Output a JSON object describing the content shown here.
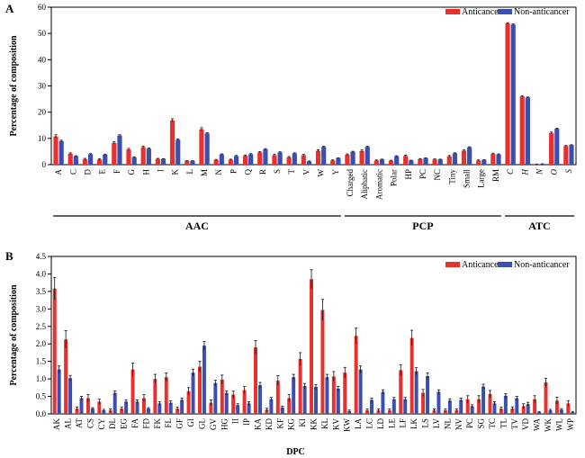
{
  "colors": {
    "anticancer": "#e8312f",
    "non_anticancer": "#3b4fb0",
    "error": "#111111"
  },
  "chart_data": [
    {
      "type": "bar",
      "panel_label": "A",
      "ylabel": "Percentage of composition",
      "xlabel": "",
      "ylim": [
        0,
        60
      ],
      "yticks": [
        0,
        10,
        20,
        30,
        40,
        50,
        60
      ],
      "legend": [
        "Anticancer",
        "Non-anticancer"
      ],
      "legend_position": "top-right",
      "categories": [
        "A",
        "C",
        "D",
        "E",
        "F",
        "G",
        "H",
        "I",
        "K",
        "L",
        "M",
        "N",
        "P",
        "Q",
        "R",
        "S",
        "T",
        "V",
        "W",
        "Y",
        "Charged",
        "Aliphatic",
        "Aromatic",
        "Polar",
        "HP",
        "PC",
        "NC",
        "Tiny",
        "Small",
        "Large",
        "RM",
        "C",
        "H",
        "N",
        "O",
        "S"
      ],
      "italic_from_index": 31,
      "series": [
        {
          "name": "Anticancer",
          "values": [
            10.8,
            4.2,
            2.1,
            2.0,
            8.3,
            5.8,
            6.7,
            2.2,
            16.9,
            1.4,
            13.5,
            1.8,
            1.9,
            3.4,
            4.7,
            3.6,
            2.8,
            3.6,
            5.3,
            1.6,
            3.8,
            5.2,
            1.6,
            1.5,
            3.3,
            2.1,
            2.0,
            3.2,
            5.3,
            1.6,
            4.1,
            53.8,
            26.0,
            0.2,
            12.1,
            7.1
          ],
          "errors": [
            0.6,
            0.3,
            0.3,
            0.3,
            0.4,
            0.4,
            0.4,
            0.2,
            0.6,
            0.2,
            0.6,
            0.2,
            0.2,
            0.3,
            0.3,
            0.3,
            0.3,
            0.3,
            0.4,
            0.2,
            0.3,
            0.4,
            0.2,
            0.2,
            0.3,
            0.2,
            0.2,
            0.3,
            0.3,
            0.2,
            0.3,
            0.3,
            0.3,
            0.05,
            0.3,
            0.2
          ]
        },
        {
          "name": "Non-anticancer",
          "values": [
            9.0,
            3.2,
            4.0,
            3.8,
            11.1,
            2.8,
            6.1,
            2.2,
            9.5,
            1.4,
            11.9,
            3.9,
            3.3,
            4.0,
            5.9,
            4.7,
            4.3,
            1.3,
            6.8,
            2.5,
            4.9,
            6.8,
            2.0,
            3.2,
            1.6,
            2.5,
            2.0,
            4.3,
            6.6,
            1.8,
            3.9,
            53.4,
            25.6,
            0.3,
            13.7,
            7.5
          ],
          "errors": [
            0.3,
            0.2,
            0.2,
            0.2,
            0.3,
            0.2,
            0.3,
            0.1,
            0.3,
            0.1,
            0.3,
            0.2,
            0.2,
            0.2,
            0.2,
            0.2,
            0.2,
            0.1,
            0.2,
            0.1,
            0.2,
            0.2,
            0.1,
            0.2,
            0.1,
            0.1,
            0.1,
            0.2,
            0.2,
            0.1,
            0.2,
            0.2,
            0.2,
            0.05,
            0.2,
            0.1
          ]
        }
      ],
      "groups": [
        {
          "label": "AAC",
          "from": 0,
          "to": 19
        },
        {
          "label": "PCP",
          "from": 20,
          "to": 30
        },
        {
          "label": "ATC",
          "from": 31,
          "to": 35
        }
      ]
    },
    {
      "type": "bar",
      "panel_label": "B",
      "ylabel": "Percentage of composition",
      "xlabel": "DPC",
      "ylim": [
        0,
        4.5
      ],
      "yticks": [
        0.0,
        0.5,
        1.0,
        1.5,
        2.0,
        2.5,
        3.0,
        3.5,
        4.0,
        4.5
      ],
      "legend": [
        "Anticancer",
        "Non-anticancer"
      ],
      "legend_position": "top-right",
      "categories": [
        "AK",
        "AL",
        "AT",
        "CS",
        "CY",
        "DL",
        "EG",
        "FA",
        "FD",
        "FK",
        "FL",
        "GF",
        "GI",
        "GL",
        "GV",
        "HG",
        "II",
        "IP",
        "KA",
        "KD",
        "KF",
        "KG",
        "KI",
        "KK",
        "KL",
        "KV",
        "KW",
        "LA",
        "LC",
        "LD",
        "LE",
        "LF",
        "LK",
        "LS",
        "LV",
        "NL",
        "NV",
        "PC",
        "SG",
        "TC",
        "TL",
        "TV",
        "VD",
        "WA",
        "WK",
        "WL",
        "WP"
      ],
      "series": [
        {
          "name": "Anticancer",
          "values": [
            3.58,
            2.13,
            0.15,
            0.45,
            0.35,
            0.1,
            0.15,
            1.27,
            0.45,
            1.0,
            1.05,
            0.15,
            0.65,
            1.35,
            0.32,
            0.98,
            0.55,
            0.68,
            1.9,
            0.12,
            0.95,
            0.45,
            1.57,
            3.85,
            2.97,
            1.07,
            1.18,
            2.23,
            0.1,
            0.1,
            0.1,
            1.25,
            2.17,
            0.6,
            0.1,
            0.1,
            0.1,
            0.42,
            0.42,
            0.57,
            0.15,
            0.15,
            0.22,
            0.42,
            0.9,
            0.38,
            0.3
          ],
          "errors": [
            0.32,
            0.25,
            0.05,
            0.1,
            0.07,
            0.04,
            0.05,
            0.18,
            0.1,
            0.13,
            0.12,
            0.05,
            0.1,
            0.15,
            0.08,
            0.13,
            0.1,
            0.1,
            0.2,
            0.04,
            0.14,
            0.1,
            0.18,
            0.27,
            0.3,
            0.14,
            0.15,
            0.22,
            0.04,
            0.04,
            0.04,
            0.15,
            0.22,
            0.1,
            0.04,
            0.04,
            0.04,
            0.1,
            0.1,
            0.1,
            0.05,
            0.05,
            0.07,
            0.1,
            0.12,
            0.1,
            0.08
          ]
        },
        {
          "name": "Non-anticancer",
          "values": [
            1.27,
            1.02,
            0.45,
            0.15,
            0.1,
            0.6,
            0.35,
            0.35,
            0.15,
            0.3,
            0.32,
            0.4,
            1.18,
            1.95,
            0.88,
            0.6,
            0.25,
            0.3,
            0.82,
            0.42,
            0.18,
            1.05,
            0.8,
            0.77,
            1.05,
            0.72,
            0.08,
            1.27,
            0.4,
            0.63,
            0.42,
            0.42,
            1.22,
            1.08,
            0.63,
            0.38,
            0.4,
            0.22,
            0.78,
            0.3,
            0.52,
            0.45,
            0.28,
            0.05,
            0.1,
            0.12,
            0.05
          ],
          "errors": [
            0.1,
            0.08,
            0.05,
            0.03,
            0.03,
            0.06,
            0.05,
            0.05,
            0.03,
            0.05,
            0.05,
            0.05,
            0.1,
            0.12,
            0.08,
            0.06,
            0.04,
            0.05,
            0.08,
            0.05,
            0.04,
            0.08,
            0.07,
            0.07,
            0.08,
            0.07,
            0.03,
            0.1,
            0.05,
            0.06,
            0.05,
            0.05,
            0.1,
            0.09,
            0.06,
            0.05,
            0.05,
            0.04,
            0.07,
            0.05,
            0.06,
            0.05,
            0.05,
            0.02,
            0.03,
            0.03,
            0.02
          ]
        }
      ]
    }
  ]
}
